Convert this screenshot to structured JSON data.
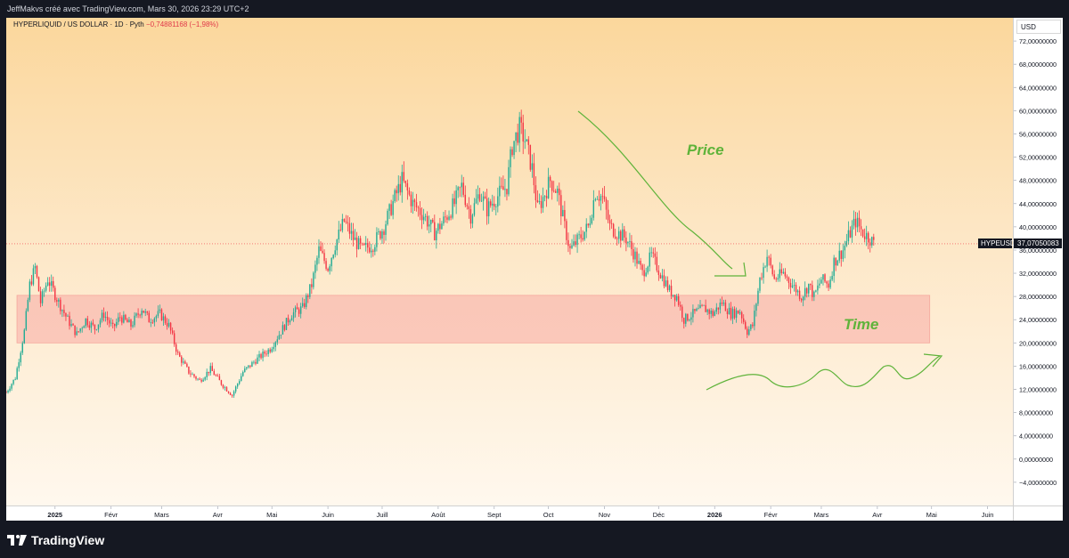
{
  "header": {
    "attribution": "JeffMakvs créé avec TradingView.com, Mars 30, 2026 23:29 UTC+2"
  },
  "legend": {
    "symbol": "HYPERLIQUID / US DOLLAR · 1D · Pyth",
    "change": "−0,74881168 (−1,98%)"
  },
  "price_axis": {
    "currency": "USD",
    "last_symbol": "HYPEUSD",
    "last_price": "37,07050083"
  },
  "footer": {
    "brand": "TradingView"
  },
  "colors": {
    "up": "#22ab94",
    "down": "#f23645",
    "zone": "#f7a9a4",
    "annotation": "#5fb33a",
    "text": "#131722"
  },
  "chart_data": {
    "type": "candlestick",
    "ylim": [
      -8,
      76
    ],
    "yticks": [
      "72,00000000",
      "68,00000000",
      "64,00000000",
      "60,00000000",
      "56,00000000",
      "52,00000000",
      "48,00000000",
      "44,00000000",
      "40,00000000",
      "36,00000000",
      "32,00000000",
      "28,00000000",
      "24,00000000",
      "20,00000000",
      "16,00000000",
      "12,00000000",
      "8,00000000",
      "4,00000000",
      "0,00000000",
      "−4,00000000"
    ],
    "ytick_values": [
      72,
      68,
      64,
      60,
      56,
      52,
      48,
      44,
      40,
      36,
      32,
      28,
      24,
      20,
      16,
      12,
      8,
      4,
      0,
      -4
    ],
    "x_start": "2024-12-05",
    "x_end": "2026-06-15",
    "xticks": [
      {
        "label": "2025",
        "date": "2025-01-01"
      },
      {
        "label": "Févr",
        "date": "2025-02-01"
      },
      {
        "label": "Mars",
        "date": "2025-03-01"
      },
      {
        "label": "Avr",
        "date": "2025-04-01"
      },
      {
        "label": "Mai",
        "date": "2025-05-01"
      },
      {
        "label": "Juin",
        "date": "2025-06-01"
      },
      {
        "label": "Juill",
        "date": "2025-07-01"
      },
      {
        "label": "Août",
        "date": "2025-08-01"
      },
      {
        "label": "Sept",
        "date": "2025-09-01"
      },
      {
        "label": "Oct",
        "date": "2025-10-01"
      },
      {
        "label": "Nov",
        "date": "2025-11-01"
      },
      {
        "label": "Déc",
        "date": "2025-12-01"
      },
      {
        "label": "2026",
        "date": "2026-01-01"
      },
      {
        "label": "Févr",
        "date": "2026-02-01"
      },
      {
        "label": "Mars",
        "date": "2026-03-01"
      },
      {
        "label": "Avr",
        "date": "2026-04-01"
      },
      {
        "label": "Mai",
        "date": "2026-05-01"
      },
      {
        "label": "Juin",
        "date": "2026-06-01"
      }
    ],
    "close_path": [
      [
        "2024-12-05",
        11.5
      ],
      [
        "2024-12-10",
        14
      ],
      [
        "2024-12-15",
        22
      ],
      [
        "2024-12-18",
        30
      ],
      [
        "2024-12-21",
        33
      ],
      [
        "2024-12-24",
        27
      ],
      [
        "2024-12-28",
        31
      ],
      [
        "2025-01-03",
        27
      ],
      [
        "2025-01-08",
        24
      ],
      [
        "2025-01-13",
        21.5
      ],
      [
        "2025-01-18",
        24
      ],
      [
        "2025-01-23",
        22.5
      ],
      [
        "2025-01-28",
        25
      ],
      [
        "2025-02-02",
        22.5
      ],
      [
        "2025-02-06",
        24.5
      ],
      [
        "2025-02-12",
        23
      ],
      [
        "2025-02-18",
        26
      ],
      [
        "2025-02-22",
        24
      ],
      [
        "2025-02-28",
        25
      ],
      [
        "2025-03-05",
        23
      ],
      [
        "2025-03-10",
        18
      ],
      [
        "2025-03-16",
        15
      ],
      [
        "2025-03-22",
        13.5
      ],
      [
        "2025-03-28",
        15.5
      ],
      [
        "2025-04-03",
        13
      ],
      [
        "2025-04-09",
        11
      ],
      [
        "2025-04-15",
        15
      ],
      [
        "2025-04-22",
        17
      ],
      [
        "2025-04-30",
        19
      ],
      [
        "2025-05-06",
        22
      ],
      [
        "2025-05-12",
        25
      ],
      [
        "2025-05-18",
        26
      ],
      [
        "2025-05-23",
        30
      ],
      [
        "2025-05-27",
        36
      ],
      [
        "2025-06-01",
        33
      ],
      [
        "2025-06-05",
        37
      ],
      [
        "2025-06-10",
        41
      ],
      [
        "2025-06-15",
        38
      ],
      [
        "2025-06-20",
        36
      ],
      [
        "2025-06-26",
        37
      ],
      [
        "2025-07-02",
        40
      ],
      [
        "2025-07-08",
        45
      ],
      [
        "2025-07-12",
        48
      ],
      [
        "2025-07-18",
        44
      ],
      [
        "2025-07-24",
        42
      ],
      [
        "2025-07-30",
        39
      ],
      [
        "2025-08-04",
        41
      ],
      [
        "2025-08-10",
        44
      ],
      [
        "2025-08-14",
        47
      ],
      [
        "2025-08-19",
        42
      ],
      [
        "2025-08-24",
        46
      ],
      [
        "2025-08-28",
        43
      ],
      [
        "2025-09-02",
        45
      ],
      [
        "2025-09-08",
        47
      ],
      [
        "2025-09-11",
        54
      ],
      [
        "2025-09-15",
        57
      ],
      [
        "2025-09-18",
        55
      ],
      [
        "2025-09-22",
        50
      ],
      [
        "2025-09-25",
        43
      ],
      [
        "2025-09-28",
        45
      ],
      [
        "2025-10-02",
        48
      ],
      [
        "2025-10-06",
        46
      ],
      [
        "2025-10-10",
        40
      ],
      [
        "2025-10-13",
        36
      ],
      [
        "2025-10-18",
        38
      ],
      [
        "2025-10-23",
        40
      ],
      [
        "2025-10-27",
        46
      ],
      [
        "2025-10-31",
        45
      ],
      [
        "2025-11-04",
        40
      ],
      [
        "2025-11-08",
        39
      ],
      [
        "2025-11-13",
        38
      ],
      [
        "2025-11-18",
        35
      ],
      [
        "2025-11-22",
        32
      ],
      [
        "2025-11-27",
        35
      ],
      [
        "2025-12-02",
        32
      ],
      [
        "2025-12-07",
        29
      ],
      [
        "2025-12-11",
        28
      ],
      [
        "2025-12-15",
        24
      ],
      [
        "2025-12-20",
        25
      ],
      [
        "2025-12-26",
        26
      ],
      [
        "2025-12-31",
        25
      ],
      [
        "2026-01-05",
        27
      ],
      [
        "2026-01-10",
        25
      ],
      [
        "2026-01-15",
        25.5
      ],
      [
        "2026-01-19",
        22
      ],
      [
        "2026-01-22",
        23
      ],
      [
        "2026-01-26",
        31
      ],
      [
        "2026-01-30",
        35
      ],
      [
        "2026-02-03",
        31
      ],
      [
        "2026-02-08",
        32
      ],
      [
        "2026-02-13",
        30
      ],
      [
        "2026-02-18",
        28
      ],
      [
        "2026-02-22",
        30
      ],
      [
        "2026-02-25",
        28
      ],
      [
        "2026-03-01",
        31
      ],
      [
        "2026-03-05",
        30
      ],
      [
        "2026-03-08",
        34
      ],
      [
        "2026-03-13",
        36
      ],
      [
        "2026-03-17",
        39
      ],
      [
        "2026-03-20",
        41
      ],
      [
        "2026-03-24",
        39
      ],
      [
        "2026-03-28",
        38
      ],
      [
        "2026-03-30",
        37.07
      ]
    ],
    "zone": {
      "from": "2024-12-05",
      "to": "2026-04-30",
      "low": 20,
      "high": 28.2
    },
    "annotations": [
      {
        "type": "text",
        "text": "Price"
      },
      {
        "type": "text",
        "text": "Time"
      }
    ]
  }
}
